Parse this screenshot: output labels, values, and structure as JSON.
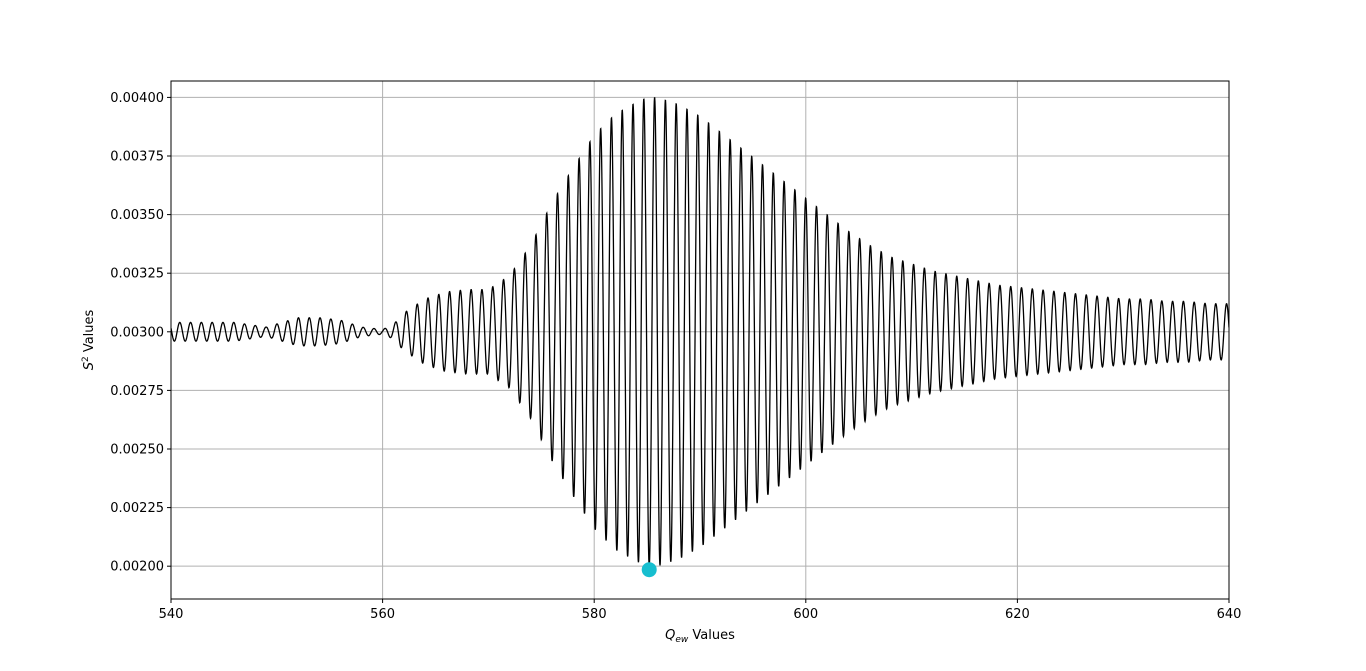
{
  "chart_data": {
    "type": "line",
    "xlabel": {
      "symbol": "Q",
      "subscript": "ew",
      "text": " Values"
    },
    "ylabel": {
      "symbol": "S",
      "superscript": "2",
      "text": " Values"
    },
    "xlim": [
      540,
      640
    ],
    "ylim": [
      0.00186,
      0.00407
    ],
    "x_ticks": [
      540,
      560,
      580,
      600,
      620,
      640
    ],
    "x_tick_labels": [
      "540",
      "560",
      "580",
      "600",
      "620",
      "640"
    ],
    "y_ticks": [
      0.002,
      0.00225,
      0.0025,
      0.00275,
      0.003,
      0.00325,
      0.0035,
      0.00375,
      0.004
    ],
    "y_tick_labels": [
      "0.00200",
      "0.00225",
      "0.00250",
      "0.00275",
      "0.00300",
      "0.00325",
      "0.00350",
      "0.00375",
      "0.00400"
    ],
    "grid": true,
    "series": [
      {
        "color": "#000000",
        "period": 1.02,
        "center": 0.003,
        "envelope": {
          "x": [
            540,
            546,
            549,
            552,
            554,
            556,
            558,
            560,
            561,
            562,
            564,
            566,
            568,
            570,
            572,
            574,
            576,
            578,
            580,
            582,
            584,
            585,
            586,
            588,
            590,
            592,
            594,
            596,
            598,
            600,
            602,
            604,
            606,
            608,
            610,
            612,
            614,
            616,
            618,
            620,
            622,
            624,
            626,
            628,
            630,
            632,
            634,
            636,
            638,
            640
          ],
          "amplitude": [
            4e-05,
            4e-05,
            2e-05,
            6e-05,
            6e-05,
            5e-05,
            2e-05,
            1e-05,
            3e-05,
            8e-05,
            0.00014,
            0.00017,
            0.00018,
            0.00018,
            0.00024,
            0.00037,
            0.00055,
            0.0007,
            0.00084,
            0.00093,
            0.00098,
            0.001,
            0.001,
            0.00097,
            0.00092,
            0.00085,
            0.00078,
            0.00071,
            0.00064,
            0.00057,
            0.0005,
            0.00043,
            0.00037,
            0.00032,
            0.00029,
            0.00026,
            0.00024,
            0.00022,
            0.0002,
            0.00019,
            0.00018,
            0.00017,
            0.00016,
            0.00015,
            0.00014,
            0.00014,
            0.00013,
            0.00013,
            0.00012,
            0.00012
          ]
        }
      }
    ],
    "marker": {
      "x": 585.2,
      "y": 0.001985,
      "color": "#17becf"
    }
  }
}
